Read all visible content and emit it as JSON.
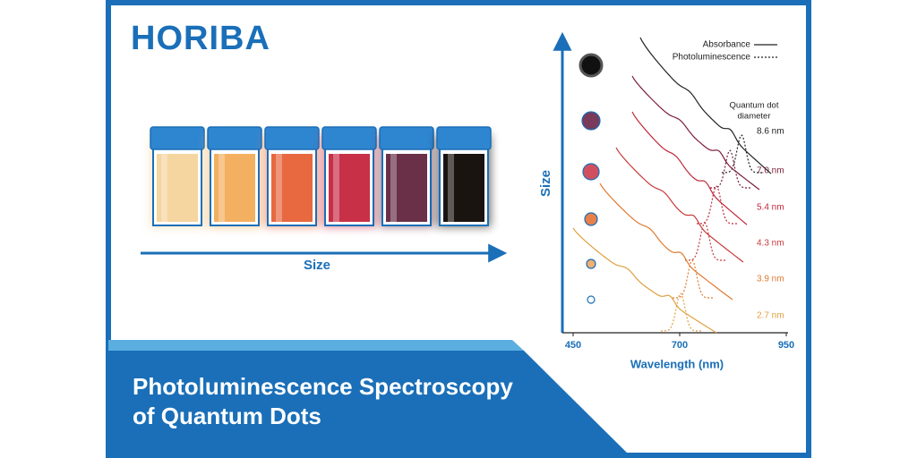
{
  "header": {
    "logo": "HORIBA"
  },
  "vials": {
    "arrow_label": "Size"
  },
  "spectrum": {
    "y_label": "Size",
    "x_label": "Wavelength (nm)",
    "xlim": [
      450,
      950
    ],
    "xticks": [
      450,
      700,
      950
    ],
    "legend": {
      "absorbance": "Absorbance",
      "photoluminescence": "Photoluminescence"
    },
    "diameter_title": [
      "Quantum dot",
      "diameter"
    ],
    "diameters": [
      "8.6 nm",
      "7.0 nm",
      "5.4 nm",
      "4.3 nm",
      "3.9 nm",
      "2.7 nm"
    ]
  },
  "banner": {
    "title": [
      "Photoluminescence Spectroscopy",
      "of Quantum Dots"
    ]
  }
}
